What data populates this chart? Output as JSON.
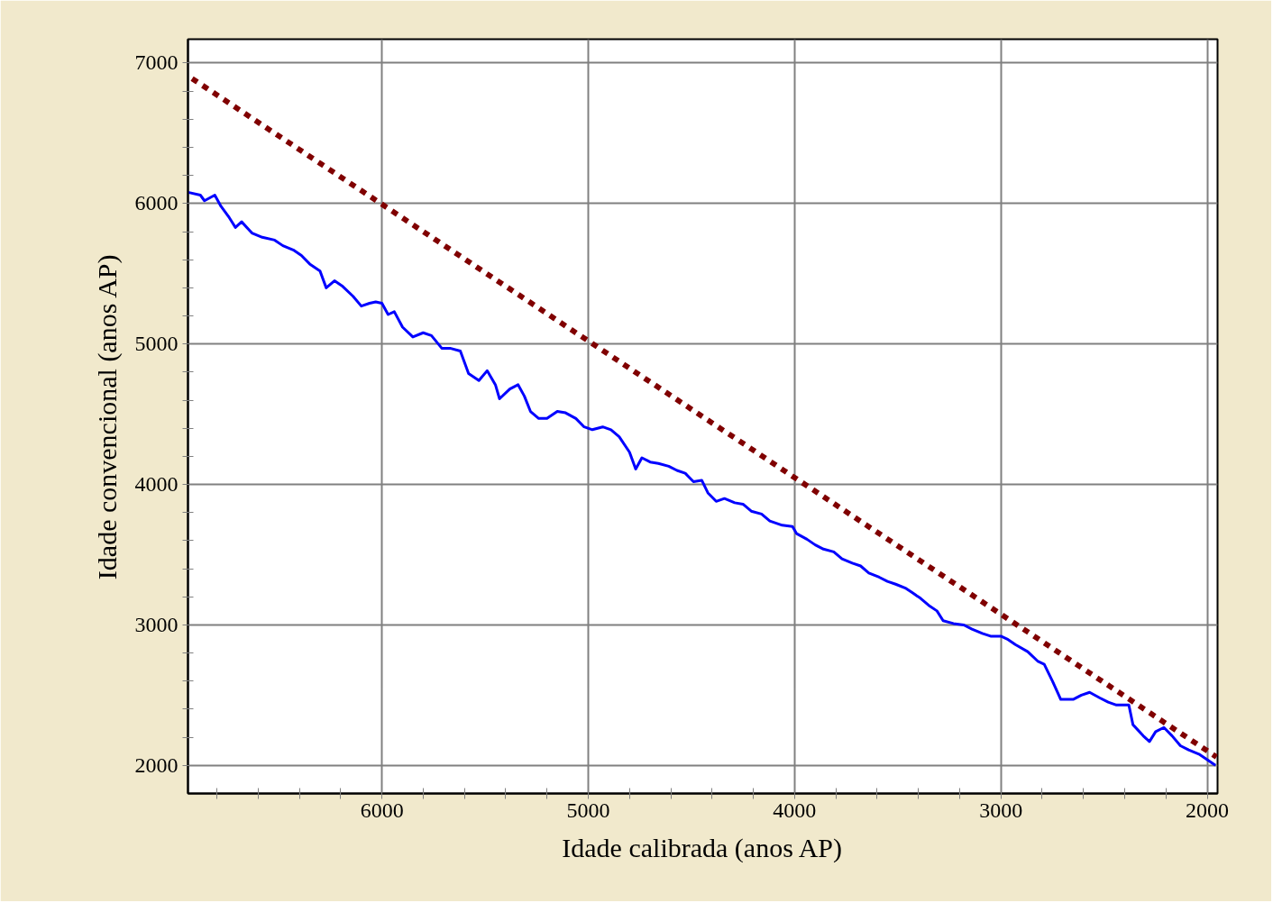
{
  "chart_data": {
    "type": "line",
    "xlabel": "Idade calibrada (anos AP)",
    "ylabel": "Idade convencional (anos AP)",
    "xlim": [
      6940,
      1950
    ],
    "ylim": [
      1800,
      7170
    ],
    "xticks": [
      6000,
      5000,
      4000,
      3000,
      2000,
      {
        "value": 6800,
        "label": null
      },
      {
        "value": 6600,
        "label": null
      },
      {
        "value": 6400,
        "label": null
      },
      {
        "value": 6200,
        "label": null
      },
      {
        "value": 5800,
        "label": null
      },
      {
        "value": 5600,
        "label": null
      },
      {
        "value": 5400,
        "label": null
      },
      {
        "value": 5200,
        "label": null
      },
      {
        "value": 4800,
        "label": null
      },
      {
        "value": 4600,
        "label": null
      },
      {
        "value": 4400,
        "label": null
      },
      {
        "value": 4200,
        "label": null
      },
      {
        "value": 3800,
        "label": null
      },
      {
        "value": 3600,
        "label": null
      },
      {
        "value": 3400,
        "label": null
      },
      {
        "value": 3200,
        "label": null
      },
      {
        "value": 2800,
        "label": null
      },
      {
        "value": 2600,
        "label": null
      },
      {
        "value": 2400,
        "label": null
      },
      {
        "value": 2200,
        "label": null
      }
    ],
    "yticks": [
      2000,
      3000,
      4000,
      5000,
      6000,
      7000,
      {
        "value": 2200,
        "label": null
      },
      {
        "value": 2400,
        "label": null
      },
      {
        "value": 2600,
        "label": null
      },
      {
        "value": 2800,
        "label": null
      },
      {
        "value": 3200,
        "label": null
      },
      {
        "value": 3400,
        "label": null
      },
      {
        "value": 3600,
        "label": null
      },
      {
        "value": 3800,
        "label": null
      },
      {
        "value": 4200,
        "label": null
      },
      {
        "value": 4400,
        "label": null
      },
      {
        "value": 4600,
        "label": null
      },
      {
        "value": 4800,
        "label": null
      },
      {
        "value": 5200,
        "label": null
      },
      {
        "value": 5400,
        "label": null
      },
      {
        "value": 5600,
        "label": null
      },
      {
        "value": 5800,
        "label": null
      },
      {
        "value": 6200,
        "label": null
      },
      {
        "value": 6400,
        "label": null
      },
      {
        "value": 6600,
        "label": null
      },
      {
        "value": 6800,
        "label": null
      }
    ],
    "grid": true,
    "marker": "none",
    "series": [
      {
        "color": "#0000ff",
        "line_style": "solid",
        "x": [
          6940,
          6880,
          6860,
          6810,
          6780,
          6740,
          6710,
          6680,
          6630,
          6580,
          6520,
          6480,
          6430,
          6390,
          6350,
          6300,
          6270,
          6230,
          6190,
          6140,
          6100,
          6060,
          6030,
          6000,
          5970,
          5940,
          5900,
          5850,
          5800,
          5760,
          5710,
          5670,
          5620,
          5580,
          5530,
          5490,
          5450,
          5430,
          5380,
          5340,
          5310,
          5280,
          5240,
          5200,
          5150,
          5110,
          5060,
          5020,
          4980,
          4930,
          4890,
          4850,
          4800,
          4770,
          4740,
          4700,
          4660,
          4610,
          4570,
          4530,
          4490,
          4450,
          4420,
          4380,
          4340,
          4290,
          4250,
          4210,
          4160,
          4120,
          4060,
          4010,
          3990,
          3940,
          3900,
          3860,
          3810,
          3770,
          3720,
          3680,
          3640,
          3590,
          3550,
          3510,
          3460,
          3430,
          3390,
          3350,
          3310,
          3280,
          3230,
          3180,
          3140,
          3090,
          3050,
          3000,
          2970,
          2930,
          2870,
          2820,
          2790,
          2750,
          2710,
          2650,
          2610,
          2570,
          2520,
          2480,
          2440,
          2380,
          2360,
          2310,
          2280,
          2250,
          2210,
          2170,
          2130,
          2090,
          2040,
          2000,
          1960
        ],
        "values": [
          6080,
          6060,
          6020,
          6060,
          5980,
          5900,
          5830,
          5870,
          5790,
          5760,
          5740,
          5700,
          5670,
          5630,
          5570,
          5520,
          5400,
          5450,
          5410,
          5340,
          5270,
          5290,
          5300,
          5290,
          5210,
          5230,
          5120,
          5050,
          5080,
          5060,
          4970,
          4970,
          4950,
          4790,
          4740,
          4810,
          4710,
          4610,
          4680,
          4710,
          4630,
          4520,
          4470,
          4470,
          4520,
          4510,
          4470,
          4410,
          4390,
          4410,
          4390,
          4340,
          4230,
          4110,
          4190,
          4160,
          4150,
          4130,
          4100,
          4080,
          4020,
          4030,
          3940,
          3880,
          3900,
          3870,
          3860,
          3810,
          3790,
          3740,
          3710,
          3700,
          3650,
          3610,
          3570,
          3540,
          3520,
          3470,
          3440,
          3420,
          3370,
          3340,
          3310,
          3290,
          3260,
          3230,
          3190,
          3140,
          3100,
          3030,
          3010,
          3000,
          2970,
          2940,
          2920,
          2920,
          2900,
          2860,
          2810,
          2740,
          2720,
          2600,
          2470,
          2470,
          2500,
          2520,
          2480,
          2450,
          2430,
          2430,
          2290,
          2210,
          2170,
          2240,
          2270,
          2210,
          2140,
          2110,
          2080,
          2040,
          2000
        ]
      },
      {
        "color": "#800000",
        "line_style": "dotted",
        "x": [
          6920,
          1955
        ],
        "values": [
          6890,
          2060
        ]
      }
    ]
  }
}
